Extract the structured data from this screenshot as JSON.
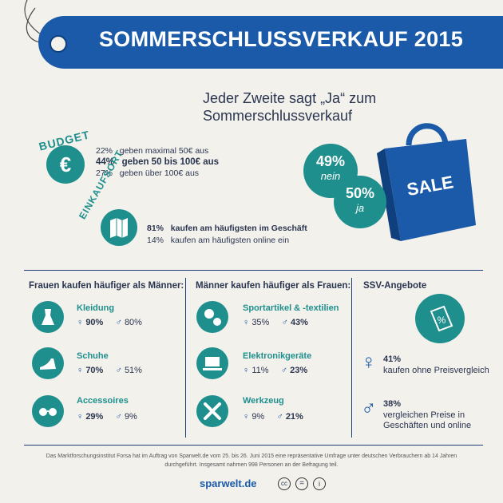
{
  "banner": {
    "title": "SOMMERSCHLUSSVERKAUF 2015"
  },
  "headline": {
    "line1": "Jeder Zweite sagt „Ja“ zum",
    "line2": "Sommerschlussverkauf"
  },
  "budget": {
    "label": "BUDGET",
    "icon": "euro-icon",
    "rows": [
      {
        "pct": "22%",
        "text": "geben maximal 50€ aus"
      },
      {
        "pct": "44%",
        "text": "geben 50 bis 100€ aus"
      },
      {
        "pct": "27%",
        "text": "geben über 100€ aus"
      }
    ]
  },
  "einkaufsort": {
    "label": "EINKAUFSORT",
    "icon": "map-icon",
    "rows": [
      {
        "pct": "81%",
        "text": "kaufen am häufigsten im Geschäft"
      },
      {
        "pct": "14%",
        "text": "kaufen am häufigsten online ein"
      }
    ]
  },
  "vote": {
    "nein_pct": "49%",
    "nein_label": "nein",
    "ja_pct": "50%",
    "ja_label": "ja",
    "bag_text": "SALE"
  },
  "frauen": {
    "title": "Frauen kaufen häufiger als Männer:",
    "items": [
      {
        "label": "Kleidung",
        "female": "90%",
        "male": "80%",
        "icon": "dress-icon"
      },
      {
        "label": "Schuhe",
        "female": "70%",
        "male": "51%",
        "icon": "shoe-icon"
      },
      {
        "label": "Accessoires",
        "female": "29%",
        "male": "9%",
        "icon": "sunglasses-icon"
      }
    ]
  },
  "maenner": {
    "title": "Männer kaufen häufiger als Frauen:",
    "items": [
      {
        "label": "Sportartikel & -textilien",
        "female": "35%",
        "male": "43%",
        "icon": "sports-icon"
      },
      {
        "label": "Elektronikgeräte",
        "female": "11%",
        "male": "23%",
        "icon": "laptop-icon"
      },
      {
        "label": "Werkzeug",
        "female": "9%",
        "male": "21%",
        "icon": "tools-icon"
      }
    ]
  },
  "ssv": {
    "title": "SSV-Angebote",
    "icon": "price-tag-icon",
    "female_pct": "41%",
    "female_text": "kaufen ohne Preisvergleich",
    "male_pct": "38%",
    "male_text1": "vergleichen Preise in",
    "male_text2": "Geschäften und online"
  },
  "footer": {
    "line1": "Das Marktforschungsinstitut Forsa hat im Auftrag von Sparwelt.de vom 25. bis 26. Juni 2015 eine repräsentative Umfrage unter deutschen Verbrauchern ab 14 Jahren",
    "line2": "durchgeführt. Insgesamt nahmen 998 Personen an der Befragung teil.",
    "brand": "sparwelt.de",
    "license_icons": [
      "cc-icon",
      "nd-icon",
      "by-icon"
    ]
  },
  "colors": {
    "blue": "#1a5aa8",
    "teal": "#1e8f8d",
    "text": "#2a3550",
    "background": "#f3f1ec"
  }
}
